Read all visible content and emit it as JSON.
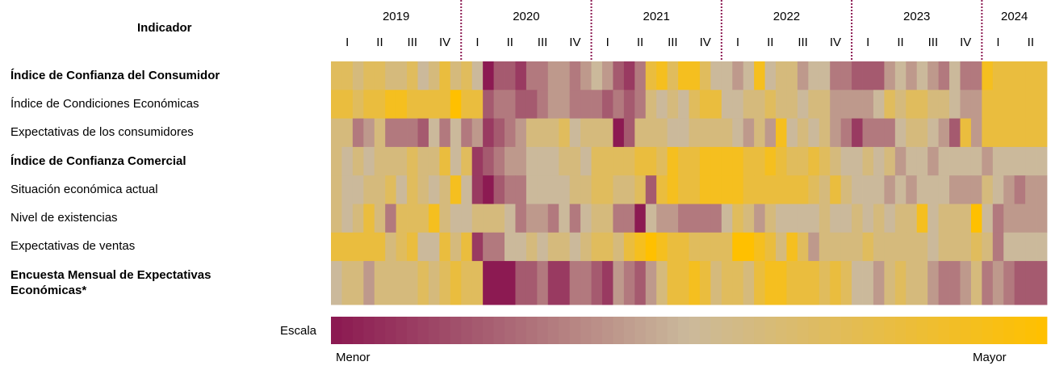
{
  "chart_data": {
    "type": "heatmap",
    "row_header": "Indicador",
    "years": [
      "2019",
      "2020",
      "2021",
      "2022",
      "2023",
      "2024"
    ],
    "quarters": [
      "I",
      "II",
      "III",
      "IV",
      "I",
      "II",
      "III",
      "IV",
      "I",
      "II",
      "III",
      "IV",
      "I",
      "II",
      "III",
      "IV",
      "I",
      "II",
      "III",
      "IV",
      "I",
      "II"
    ],
    "rows": [
      {
        "name": "Índice de Confianza del Consumidor",
        "bold": true,
        "values": [
          7,
          7,
          6,
          7,
          7,
          6,
          6,
          7,
          5,
          6,
          8,
          6,
          7,
          5,
          0,
          2,
          2,
          1,
          3,
          3,
          4,
          4,
          3,
          4,
          5,
          4,
          2,
          1,
          3,
          8,
          9,
          7,
          9,
          9,
          7,
          5,
          5,
          4,
          5,
          9,
          5,
          6,
          6,
          4,
          5,
          5,
          3,
          3,
          2,
          2,
          2,
          4,
          5,
          4,
          5,
          4,
          3,
          5,
          3,
          3,
          9,
          8,
          8,
          8,
          8,
          8
        ]
      },
      {
        "name": "Índice de Condiciones Económicas",
        "bold": false,
        "values": [
          8,
          8,
          7,
          8,
          8,
          9,
          9,
          8,
          8,
          8,
          8,
          10,
          8,
          8,
          2,
          3,
          3,
          2,
          2,
          3,
          4,
          4,
          3,
          3,
          3,
          2,
          3,
          2,
          3,
          6,
          5,
          6,
          5,
          7,
          8,
          8,
          5,
          5,
          6,
          6,
          7,
          6,
          6,
          5,
          6,
          6,
          4,
          4,
          4,
          4,
          5,
          7,
          6,
          7,
          7,
          6,
          6,
          5,
          4,
          4,
          8,
          8,
          8,
          8,
          8,
          8
        ]
      },
      {
        "name": "Expectativas de los consumidores",
        "bold": false,
        "values": [
          6,
          6,
          3,
          4,
          6,
          3,
          3,
          3,
          2,
          5,
          3,
          5,
          3,
          4,
          1,
          2,
          3,
          4,
          6,
          6,
          6,
          7,
          5,
          6,
          6,
          6,
          0,
          2,
          6,
          6,
          6,
          5,
          5,
          6,
          6,
          6,
          6,
          5,
          4,
          6,
          4,
          9,
          5,
          6,
          5,
          6,
          4,
          3,
          1,
          3,
          3,
          3,
          5,
          6,
          6,
          5,
          4,
          2,
          8,
          4,
          8,
          8,
          8,
          8,
          8,
          8
        ]
      },
      {
        "name": "Índice de Confianza Comercial",
        "bold": true,
        "values": [
          6,
          5,
          6,
          5,
          6,
          6,
          6,
          7,
          6,
          6,
          8,
          5,
          7,
          1,
          2,
          3,
          4,
          4,
          5,
          5,
          5,
          6,
          6,
          5,
          7,
          7,
          7,
          7,
          8,
          8,
          7,
          9,
          8,
          8,
          9,
          9,
          9,
          9,
          8,
          8,
          9,
          8,
          7,
          7,
          8,
          7,
          6,
          5,
          5,
          6,
          5,
          6,
          4,
          5,
          5,
          4,
          5,
          5,
          5,
          5,
          4,
          5,
          5,
          5,
          5,
          5
        ]
      },
      {
        "name": "Situación económica actual",
        "bold": false,
        "values": [
          6,
          5,
          5,
          6,
          6,
          7,
          5,
          7,
          6,
          5,
          6,
          9,
          5,
          1,
          0,
          2,
          3,
          3,
          5,
          5,
          5,
          5,
          6,
          6,
          7,
          7,
          6,
          6,
          7,
          2,
          8,
          9,
          8,
          8,
          9,
          9,
          9,
          9,
          8,
          8,
          8,
          8,
          8,
          8,
          7,
          6,
          8,
          6,
          5,
          5,
          5,
          4,
          5,
          4,
          5,
          5,
          5,
          4,
          4,
          4,
          6,
          5,
          4,
          3,
          4,
          4
        ]
      },
      {
        "name": "Nivel de existencias",
        "bold": false,
        "values": [
          6,
          5,
          6,
          8,
          6,
          3,
          7,
          7,
          7,
          9,
          6,
          5,
          5,
          6,
          6,
          6,
          5,
          3,
          4,
          4,
          3,
          5,
          3,
          5,
          6,
          6,
          3,
          3,
          0,
          5,
          4,
          4,
          3,
          3,
          3,
          3,
          5,
          7,
          6,
          4,
          6,
          5,
          5,
          5,
          5,
          6,
          5,
          5,
          6,
          5,
          6,
          5,
          6,
          6,
          9,
          5,
          6,
          6,
          6,
          10,
          5,
          3,
          4,
          4,
          4,
          4
        ]
      },
      {
        "name": "Expectativas de ventas",
        "bold": false,
        "values": [
          8,
          8,
          8,
          8,
          8,
          6,
          7,
          8,
          5,
          5,
          8,
          6,
          8,
          1,
          3,
          3,
          5,
          5,
          6,
          5,
          6,
          6,
          5,
          6,
          7,
          7,
          6,
          8,
          9,
          10,
          9,
          8,
          8,
          7,
          7,
          7,
          7,
          10,
          10,
          9,
          8,
          6,
          9,
          7,
          4,
          6,
          6,
          6,
          6,
          7,
          6,
          6,
          6,
          6,
          6,
          5,
          6,
          6,
          6,
          7,
          6,
          3,
          5,
          5,
          5,
          5
        ]
      },
      {
        "name": "Encuesta Mensual de Expectativas Económicas*",
        "bold": true,
        "values": [
          5,
          6,
          6,
          4,
          6,
          6,
          6,
          6,
          7,
          6,
          7,
          8,
          7,
          7,
          0,
          0,
          0,
          2,
          2,
          3,
          1,
          1,
          3,
          3,
          2,
          1,
          4,
          3,
          2,
          4,
          6,
          8,
          8,
          9,
          8,
          6,
          7,
          7,
          6,
          8,
          9,
          9,
          8,
          8,
          8,
          7,
          8,
          7,
          5,
          5,
          4,
          6,
          7,
          6,
          6,
          4,
          3,
          3,
          4,
          6,
          3,
          4,
          3,
          2,
          2,
          2
        ]
      }
    ],
    "zlim": [
      0,
      10
    ],
    "colors": [
      "#8c1a52",
      "#cbb99b",
      "#ffc000"
    ],
    "scale_label": "Escala",
    "scale_min_label": "Menor",
    "scale_max_label": "Mayor"
  }
}
